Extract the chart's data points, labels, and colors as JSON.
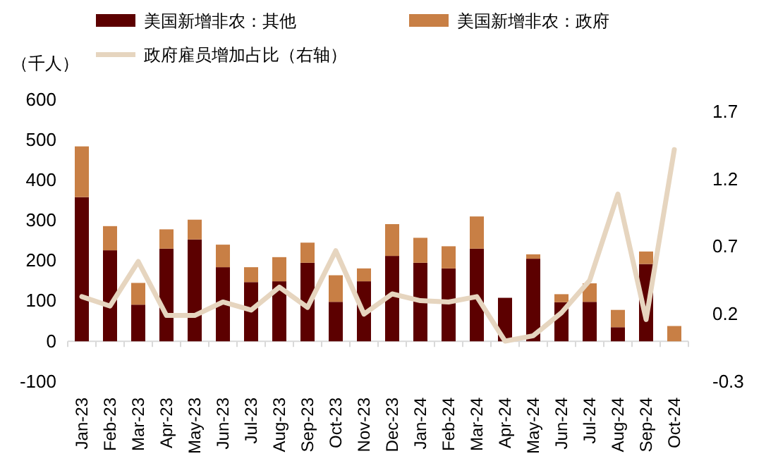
{
  "chart_data": {
    "type": "bar",
    "stacked": true,
    "ylabel": "（千人）",
    "legend": "top",
    "categories": [
      "Jan-23",
      "Feb-23",
      "Mar-23",
      "Apr-23",
      "May-23",
      "Jun-23",
      "Jul-23",
      "Aug-23",
      "Sep-23",
      "Oct-23",
      "Nov-23",
      "Dec-23",
      "Jan-24",
      "Feb-24",
      "Mar-24",
      "Apr-24",
      "May-24",
      "Jun-24",
      "Jul-24",
      "Aug-24",
      "Sep-24",
      "Oct-24"
    ],
    "series": [
      {
        "name": "美国新增非农：其他",
        "color": "#5c0000",
        "values": [
          358,
          226,
          91,
          230,
          253,
          184,
          147,
          149,
          195,
          98,
          149,
          212,
          195,
          181,
          230,
          108,
          205,
          97,
          98,
          35,
          192,
          null
        ]
      },
      {
        "name": "美国新增非农：政府",
        "color": "#c87f45",
        "values": [
          126,
          60,
          54,
          48,
          49,
          56,
          37,
          60,
          50,
          66,
          32,
          79,
          62,
          55,
          80,
          0,
          11,
          20,
          46,
          43,
          31,
          38
        ]
      },
      {
        "name": "政府雇员增加占比（右轴）",
        "type": "line",
        "axis": "y2",
        "color": "#e6d5bf",
        "values": [
          0.33,
          0.26,
          0.59,
          0.19,
          0.19,
          0.29,
          0.23,
          0.4,
          0.25,
          0.67,
          0.2,
          0.35,
          0.3,
          0.29,
          0.33,
          0.0,
          0.04,
          0.21,
          0.45,
          1.09,
          0.16,
          1.42
        ]
      }
    ],
    "ylim": [
      -100,
      600
    ],
    "yticks": [
      -100,
      0,
      100,
      200,
      300,
      400,
      500,
      600
    ],
    "y2lim": [
      -0.3,
      1.7
    ],
    "y2ticks": [
      -0.3,
      0.2,
      0.7,
      1.2,
      1.7
    ],
    "marker": "none",
    "line_style": "solid"
  }
}
